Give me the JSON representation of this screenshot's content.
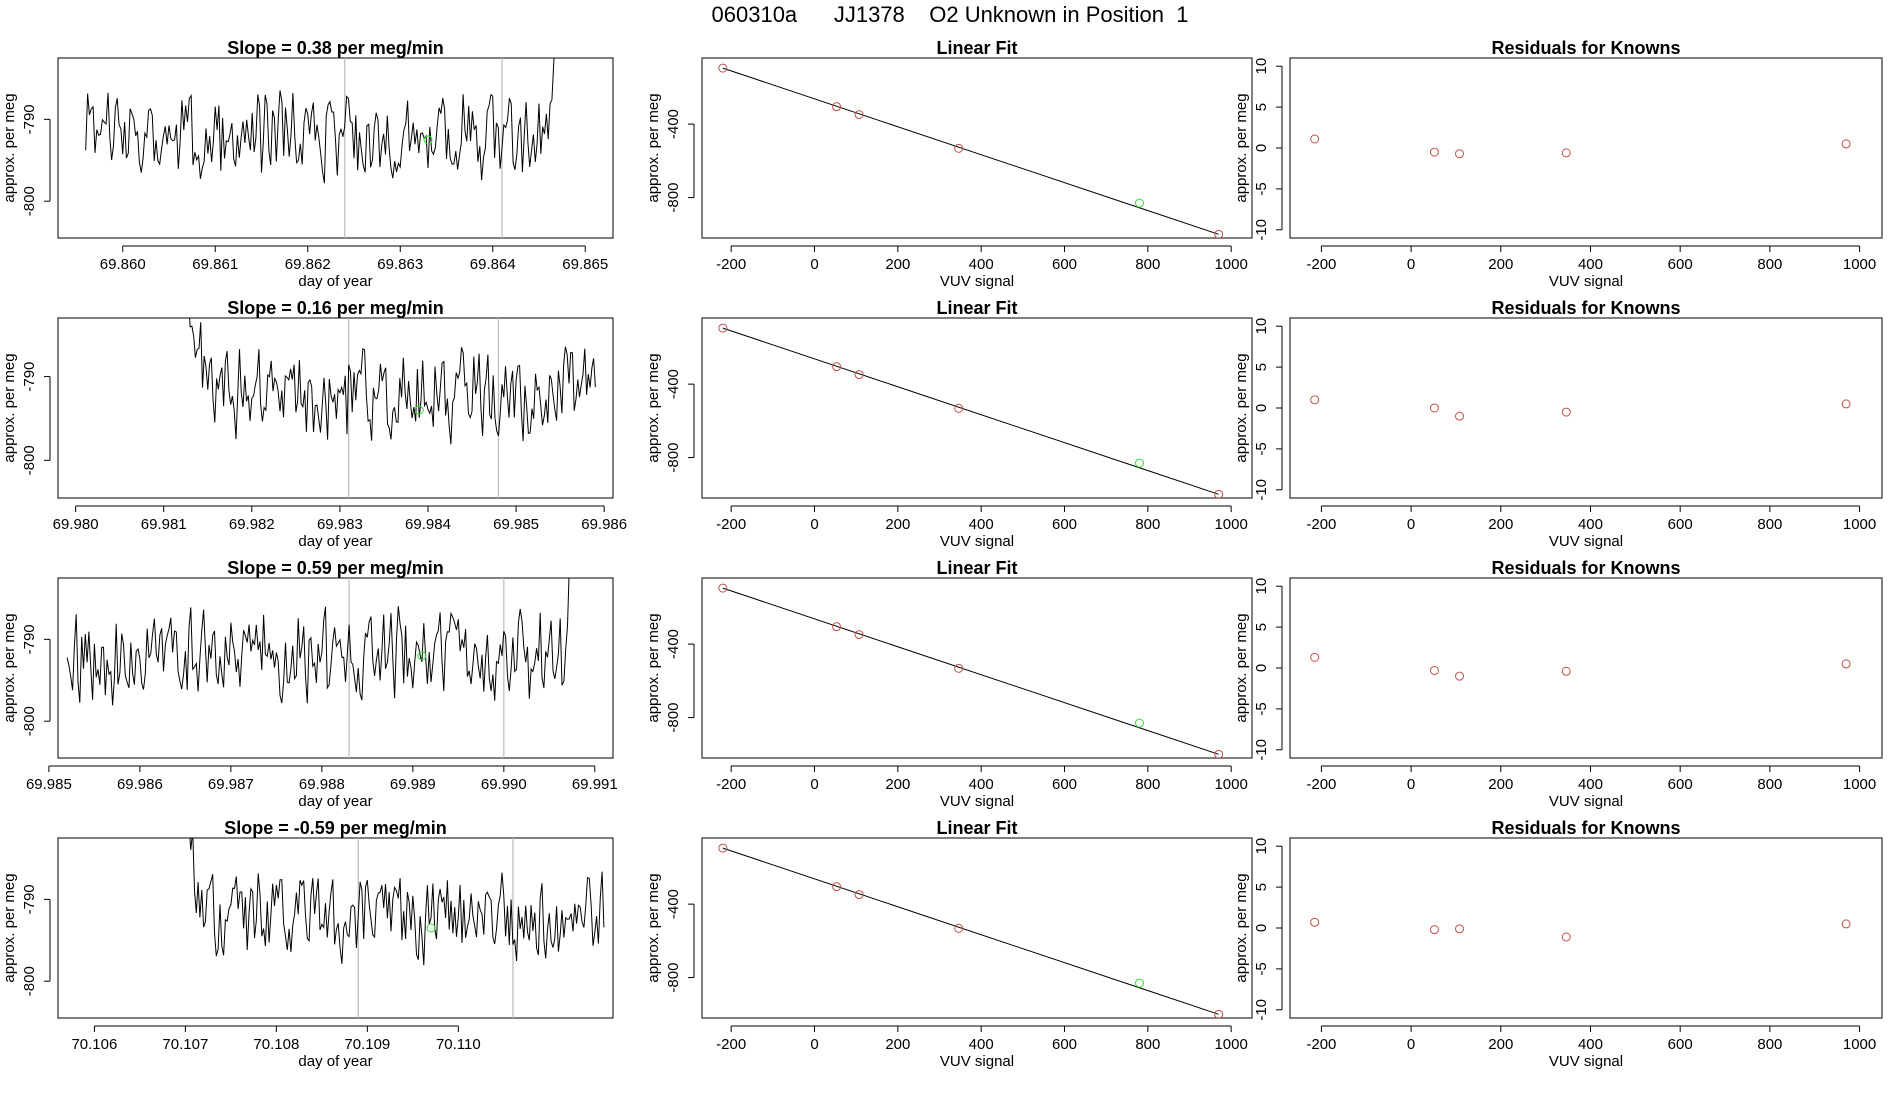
{
  "page": {
    "title": "060310a      JJ1378    O2 Unknown in Position  1"
  },
  "colors": {
    "known": "#c0504d",
    "unknown": "#33dd33",
    "line": "#000000",
    "vline": "#bbbbbb"
  },
  "chart_data": [
    {
      "type": "line",
      "title": "Slope =  0.38  per meg/min",
      "xlabel": "day of year",
      "ylabel": "approx. per meg",
      "xlim": [
        69.8593,
        69.8653
      ],
      "ylim": [
        -804.5,
        -782.5
      ],
      "xticks": [
        "69.860",
        "69.861",
        "69.862",
        "69.863",
        "69.864",
        "69.865"
      ],
      "xtick_values": [
        69.86,
        69.861,
        69.862,
        69.863,
        69.864,
        69.865
      ],
      "yticks": [
        "-790",
        "-800"
      ],
      "ytick_values": [
        -790,
        -800
      ],
      "series_start": 69.8596,
      "series_end": 69.8648,
      "series_step": 2e-05,
      "series_seed": 3,
      "rise_at": 0.95,
      "vlines": [
        69.8624,
        69.8641
      ],
      "marker": {
        "x": 69.8633,
        "y": -792.5
      }
    },
    {
      "type": "line",
      "title": "Linear Fit",
      "xlabel": "VUV signal",
      "ylabel": "approx. per meg",
      "xlim": [
        -270,
        1050
      ],
      "ylim": [
        -1020,
        -40
      ],
      "xticks": [
        "-200",
        "0",
        "200",
        "400",
        "600",
        "800",
        "1000"
      ],
      "xtick_values": [
        -200,
        0,
        200,
        400,
        600,
        800,
        1000
      ],
      "yticks": [
        "-400",
        "-800"
      ],
      "ytick_values": [
        -400,
        -800
      ],
      "fit_line": [
        [
          -220,
          -95
        ],
        [
          970,
          -1000
        ]
      ],
      "known_points": [
        [
          -220,
          -95
        ],
        [
          53,
          -305
        ],
        [
          107,
          -348
        ],
        [
          346,
          -532
        ],
        [
          970,
          -1000
        ]
      ],
      "unknown_point": [
        780,
        -830
      ]
    },
    {
      "type": "scatter",
      "title": "Residuals for Knowns",
      "xlabel": "VUV signal",
      "ylabel": "approx. per meg",
      "xlim": [
        -270,
        1050
      ],
      "ylim": [
        -11,
        11
      ],
      "xticks": [
        "-200",
        "0",
        "200",
        "400",
        "600",
        "800",
        "1000"
      ],
      "xtick_values": [
        -200,
        0,
        200,
        400,
        600,
        800,
        1000
      ],
      "yticks": [
        "-10",
        "-5",
        "0",
        "5",
        "10"
      ],
      "ytick_values": [
        -10,
        -5,
        0,
        5,
        10
      ],
      "points": [
        [
          -215,
          1.1
        ],
        [
          52,
          -0.5
        ],
        [
          108,
          -0.7
        ],
        [
          346,
          -0.6
        ],
        [
          970,
          0.5
        ]
      ]
    },
    {
      "type": "line",
      "title": "Slope =  0.16  per meg/min",
      "xlabel": "day of year",
      "ylabel": "approx. per meg",
      "xlim": [
        69.9798,
        69.9861
      ],
      "ylim": [
        -804.5,
        -783
      ],
      "xticks": [
        "69.980",
        "69.981",
        "69.982",
        "69.983",
        "69.984",
        "69.985",
        "69.986"
      ],
      "xtick_values": [
        69.98,
        69.981,
        69.982,
        69.983,
        69.984,
        69.985,
        69.986
      ],
      "yticks": [
        "-790",
        "-800"
      ],
      "ytick_values": [
        -790,
        -800
      ],
      "series_start": 69.9811,
      "series_end": 69.9859,
      "series_step": 2e-05,
      "series_seed": 7,
      "drop_at": 0.1,
      "vlines": [
        69.9831,
        69.9848
      ],
      "marker": {
        "x": 69.9839,
        "y": -794
      }
    },
    {
      "type": "line",
      "title": "Linear Fit",
      "xlabel": "VUV signal",
      "ylabel": "approx. per meg",
      "xlim": [
        -270,
        1050
      ],
      "ylim": [
        -1020,
        -40
      ],
      "xticks": [
        "-200",
        "0",
        "200",
        "400",
        "600",
        "800",
        "1000"
      ],
      "xtick_values": [
        -200,
        0,
        200,
        400,
        600,
        800,
        1000
      ],
      "yticks": [
        "-400",
        "-800"
      ],
      "ytick_values": [
        -400,
        -800
      ],
      "fit_line": [
        [
          -220,
          -95
        ],
        [
          970,
          -1000
        ]
      ],
      "known_points": [
        [
          -220,
          -95
        ],
        [
          53,
          -305
        ],
        [
          107,
          -348
        ],
        [
          346,
          -532
        ],
        [
          970,
          -1000
        ]
      ],
      "unknown_point": [
        780,
        -830
      ]
    },
    {
      "type": "scatter",
      "title": "Residuals for Knowns",
      "xlabel": "VUV signal",
      "ylabel": "approx. per meg",
      "xlim": [
        -270,
        1050
      ],
      "ylim": [
        -11,
        11
      ],
      "xticks": [
        "-200",
        "0",
        "200",
        "400",
        "600",
        "800",
        "1000"
      ],
      "xtick_values": [
        -200,
        0,
        200,
        400,
        600,
        800,
        1000
      ],
      "yticks": [
        "-10",
        "-5",
        "0",
        "5",
        "10"
      ],
      "ytick_values": [
        -10,
        -5,
        0,
        5,
        10
      ],
      "points": [
        [
          -215,
          1.0
        ],
        [
          52,
          0.0
        ],
        [
          108,
          -1.0
        ],
        [
          346,
          -0.5
        ],
        [
          970,
          0.5
        ]
      ]
    },
    {
      "type": "line",
      "title": "Slope =  0.59  per meg/min",
      "xlabel": "day of year",
      "ylabel": "approx. per meg",
      "xlim": [
        69.9851,
        69.9912
      ],
      "ylim": [
        -804.5,
        -782.5
      ],
      "xticks": [
        "69.985",
        "69.986",
        "69.987",
        "69.988",
        "69.989",
        "69.990",
        "69.991"
      ],
      "xtick_values": [
        69.985,
        69.986,
        69.987,
        69.988,
        69.989,
        69.99,
        69.991
      ],
      "yticks": [
        "-790",
        "-800"
      ],
      "ytick_values": [
        -790,
        -800
      ],
      "series_start": 69.9852,
      "series_end": 69.9908,
      "series_step": 2e-05,
      "series_seed": 11,
      "rise_at": 0.97,
      "vlines": [
        69.9883,
        69.99
      ],
      "marker": {
        "x": 69.9891,
        "y": -792
      }
    },
    {
      "type": "line",
      "title": "Linear Fit",
      "xlabel": "VUV signal",
      "ylabel": "approx. per meg",
      "xlim": [
        -270,
        1050
      ],
      "ylim": [
        -1020,
        -40
      ],
      "xticks": [
        "-200",
        "0",
        "200",
        "400",
        "600",
        "800",
        "1000"
      ],
      "xtick_values": [
        -200,
        0,
        200,
        400,
        600,
        800,
        1000
      ],
      "yticks": [
        "-400",
        "-800"
      ],
      "ytick_values": [
        -400,
        -800
      ],
      "fit_line": [
        [
          -220,
          -95
        ],
        [
          970,
          -1000
        ]
      ],
      "known_points": [
        [
          -220,
          -95
        ],
        [
          53,
          -305
        ],
        [
          107,
          -348
        ],
        [
          346,
          -532
        ],
        [
          970,
          -1000
        ]
      ],
      "unknown_point": [
        780,
        -830
      ]
    },
    {
      "type": "scatter",
      "title": "Residuals for Knowns",
      "xlabel": "VUV signal",
      "ylabel": "approx. per meg",
      "xlim": [
        -270,
        1050
      ],
      "ylim": [
        -11,
        11
      ],
      "xticks": [
        "-200",
        "0",
        "200",
        "400",
        "600",
        "800",
        "1000"
      ],
      "xtick_values": [
        -200,
        0,
        200,
        400,
        600,
        800,
        1000
      ],
      "yticks": [
        "-10",
        "-5",
        "0",
        "5",
        "10"
      ],
      "ytick_values": [
        -10,
        -5,
        0,
        5,
        10
      ],
      "points": [
        [
          -215,
          1.3
        ],
        [
          52,
          -0.3
        ],
        [
          108,
          -1.0
        ],
        [
          346,
          -0.4
        ],
        [
          970,
          0.5
        ]
      ]
    },
    {
      "type": "line",
      "title": "Slope =  -0.59  per meg/min",
      "xlabel": "day of year",
      "ylabel": "approx. per meg",
      "xlim": [
        70.1056,
        70.1117
      ],
      "ylim": [
        -804.5,
        -782.5
      ],
      "xticks": [
        "70.106",
        "70.107",
        "70.108",
        "70.109",
        "70.110"
      ],
      "xtick_values": [
        70.106,
        70.107,
        70.108,
        70.109,
        70.11
      ],
      "yticks": [
        "-790",
        "-800"
      ],
      "ytick_values": [
        -790,
        -800
      ],
      "series_start": 70.1069,
      "series_end": 70.1116,
      "series_step": 2e-05,
      "series_seed": 19,
      "drop_at": 0.08,
      "vlines": [
        70.1089,
        70.1106
      ],
      "marker": {
        "x": 70.1097,
        "y": -793.5
      }
    },
    {
      "type": "line",
      "title": "Linear Fit",
      "xlabel": "VUV signal",
      "ylabel": "approx. per meg",
      "xlim": [
        -270,
        1050
      ],
      "ylim": [
        -1020,
        -40
      ],
      "xticks": [
        "-200",
        "0",
        "200",
        "400",
        "600",
        "800",
        "1000"
      ],
      "xtick_values": [
        -200,
        0,
        200,
        400,
        600,
        800,
        1000
      ],
      "yticks": [
        "-400",
        "-800"
      ],
      "ytick_values": [
        -400,
        -800
      ],
      "fit_line": [
        [
          -220,
          -95
        ],
        [
          970,
          -1000
        ]
      ],
      "known_points": [
        [
          -220,
          -95
        ],
        [
          53,
          -305
        ],
        [
          107,
          -348
        ],
        [
          346,
          -532
        ],
        [
          970,
          -1000
        ]
      ],
      "unknown_point": [
        780,
        -830
      ]
    },
    {
      "type": "scatter",
      "title": "Residuals for Knowns",
      "xlabel": "VUV signal",
      "ylabel": "approx. per meg",
      "xlim": [
        -270,
        1050
      ],
      "ylim": [
        -11,
        11
      ],
      "xticks": [
        "-200",
        "0",
        "200",
        "400",
        "600",
        "800",
        "1000"
      ],
      "xtick_values": [
        -200,
        0,
        200,
        400,
        600,
        800,
        1000
      ],
      "yticks": [
        "-10",
        "-5",
        "0",
        "5",
        "10"
      ],
      "ytick_values": [
        -10,
        -5,
        0,
        5,
        10
      ],
      "points": [
        [
          -215,
          0.7
        ],
        [
          52,
          -0.2
        ],
        [
          108,
          -0.1
        ],
        [
          346,
          -1.1
        ],
        [
          970,
          0.5
        ]
      ]
    }
  ]
}
